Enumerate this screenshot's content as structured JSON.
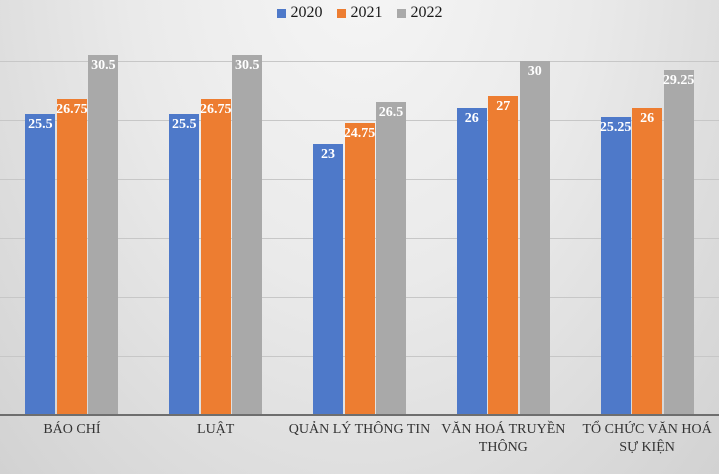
{
  "chart_data": {
    "type": "bar",
    "title": "",
    "xlabel": "",
    "ylabel": "",
    "categories": [
      "BÁO CHÍ",
      "LUẬT",
      "QUẢN LÝ THÔNG TIN",
      "VĂN HOÁ TRUYỀN THÔNG",
      "TỔ CHỨC VĂN HOÁ SỰ KIỆN"
    ],
    "series": [
      {
        "name": "2020",
        "color": "#4E79C9",
        "values": [
          25.5,
          25.5,
          23,
          26,
          25.25
        ]
      },
      {
        "name": "2021",
        "color": "#ED7D31",
        "values": [
          26.75,
          26.75,
          24.75,
          27,
          26
        ]
      },
      {
        "name": "2022",
        "color": "#A9A9A9",
        "values": [
          30.5,
          30.5,
          26.5,
          30,
          29.25
        ]
      }
    ],
    "data_labels": [
      "25.5",
      "26.75",
      "30.5",
      "23",
      "24.75",
      "26.5",
      "26",
      "27",
      "30",
      "25.25",
      "29.25"
    ],
    "data_label_style": "inside-end, white, bold",
    "ylim": [
      0,
      30
    ],
    "gridline_step": 5,
    "grid": "horizontal, unlabeled",
    "legend_position": "top-center",
    "colors": {
      "gridline": "#c7c7c7",
      "axis_line": "#6e6e6e",
      "data_label_text": "#ffffff",
      "category_text": "#333333",
      "legend_text": "#1a1a1a"
    }
  }
}
